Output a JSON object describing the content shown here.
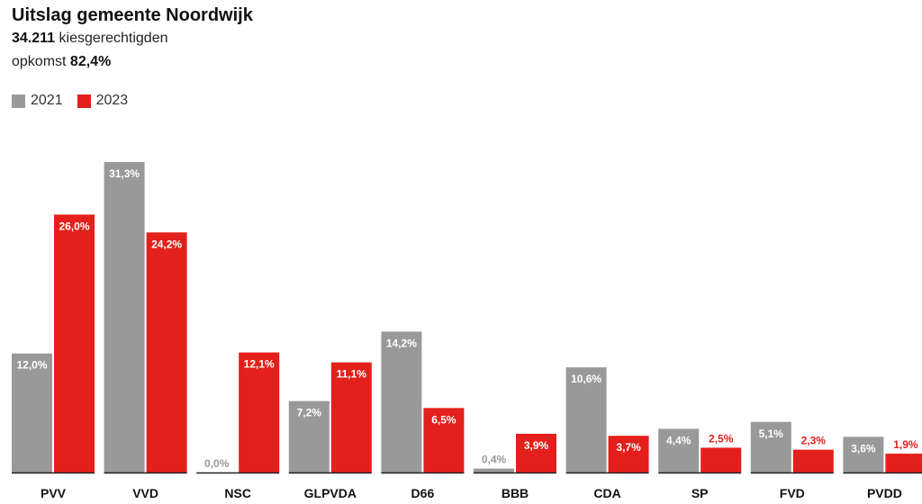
{
  "header": {
    "title": "Uitslag gemeente Noordwijk",
    "voters_value": "34.211",
    "voters_label": "kiesgerechtigden",
    "turnout_label": "opkomst",
    "turnout_value": "82,4%"
  },
  "colors": {
    "2021": "#999999",
    "2023": "#e3201b"
  },
  "chart_data": {
    "type": "bar",
    "title": "Uitslag gemeente Noordwijk",
    "xlabel": "",
    "ylabel": "",
    "categories": [
      "PVV",
      "VVD",
      "NSC",
      "GLPVDA",
      "D66",
      "BBB",
      "CDA",
      "SP",
      "FVD",
      "PVDD"
    ],
    "series": [
      {
        "name": "2021",
        "values": [
          12.0,
          31.3,
          0.0,
          7.2,
          14.2,
          0.4,
          10.6,
          4.4,
          5.1,
          3.6
        ],
        "labels": [
          "12,0%",
          "31,3%",
          "0,0%",
          "7,2%",
          "14,2%",
          "0,4%",
          "10,6%",
          "4,4%",
          "5,1%",
          "3,6%"
        ]
      },
      {
        "name": "2023",
        "values": [
          26.0,
          24.2,
          12.1,
          11.1,
          6.5,
          3.9,
          3.7,
          2.5,
          2.3,
          1.9
        ],
        "labels": [
          "26,0%",
          "24,2%",
          "12,1%",
          "11,1%",
          "6,5%",
          "3,9%",
          "3,7%",
          "2,5%",
          "2,3%",
          "1,9%"
        ]
      }
    ],
    "ylim": [
      0,
      31.3
    ],
    "legend": "top-left",
    "grid": false
  }
}
